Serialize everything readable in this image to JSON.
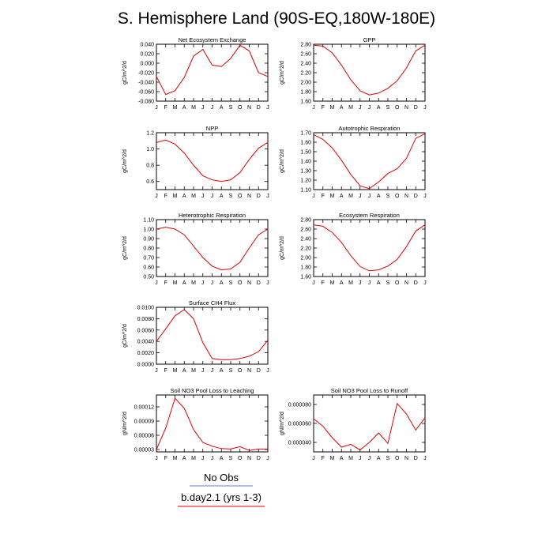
{
  "title": "S. Hemisphere Land (90S-EQ,180W-180E)",
  "colors": {
    "line": "#e00000",
    "axis": "#000000",
    "obs_line": "#5a7fd6",
    "model_line": "#e00000"
  },
  "months": [
    "J",
    "F",
    "M",
    "A",
    "M",
    "J",
    "J",
    "A",
    "S",
    "O",
    "N",
    "D",
    "J"
  ],
  "legend": {
    "obs_label": "No Obs",
    "model_label": "b.day2.1 (yrs 1-3)"
  },
  "chart_data": [
    {
      "type": "line",
      "title": "Net Ecosystem Exchange",
      "ylabel": "gC/m^2/d",
      "ylim": [
        -0.08,
        0.04
      ],
      "yticks": [
        -0.08,
        -0.06,
        -0.04,
        -0.02,
        0,
        0.02,
        0.04
      ],
      "yticklabels": [
        "-0.080",
        "-0.060",
        "-0.040",
        "-0.020",
        "0.000",
        "0.020",
        "0.040"
      ],
      "values": [
        -0.028,
        -0.066,
        -0.058,
        -0.03,
        0.015,
        0.029,
        -0.004,
        -0.007,
        0.01,
        0.038,
        0.026,
        -0.02,
        -0.028
      ]
    },
    {
      "type": "line",
      "title": "GPP",
      "ylabel": "gC/m^2/d",
      "ylim": [
        1.6,
        2.8
      ],
      "yticks": [
        1.6,
        1.8,
        2.0,
        2.2,
        2.4,
        2.6,
        2.8
      ],
      "yticklabels": [
        "1.60",
        "1.80",
        "2.00",
        "2.20",
        "2.40",
        "2.60",
        "2.80"
      ],
      "values": [
        2.78,
        2.76,
        2.62,
        2.36,
        2.05,
        1.82,
        1.73,
        1.77,
        1.87,
        2.03,
        2.3,
        2.66,
        2.78
      ]
    },
    {
      "type": "line",
      "title": "NPP",
      "ylabel": "gC/m^2/d",
      "ylim": [
        0.5,
        1.2
      ],
      "yticks": [
        0.6,
        0.8,
        1.0,
        1.2
      ],
      "yticklabels": [
        "0.6",
        "0.8",
        "1.0",
        "1.2"
      ],
      "values": [
        1.08,
        1.11,
        1.06,
        0.95,
        0.8,
        0.67,
        0.62,
        0.6,
        0.62,
        0.71,
        0.87,
        1.01,
        1.08
      ]
    },
    {
      "type": "line",
      "title": "Autotrophic Respiration",
      "ylabel": "gC/m^2/d",
      "ylim": [
        1.1,
        1.7
      ],
      "yticks": [
        1.1,
        1.2,
        1.3,
        1.4,
        1.5,
        1.6,
        1.7
      ],
      "yticklabels": [
        "1.10",
        "1.20",
        "1.30",
        "1.40",
        "1.50",
        "1.60",
        "1.70"
      ],
      "values": [
        1.68,
        1.63,
        1.54,
        1.41,
        1.26,
        1.14,
        1.11,
        1.18,
        1.27,
        1.32,
        1.43,
        1.64,
        1.69
      ]
    },
    {
      "type": "line",
      "title": "Heterotrophic Respiration",
      "ylabel": "gC/m^2/d",
      "ylim": [
        0.5,
        1.1
      ],
      "yticks": [
        0.5,
        0.6,
        0.7,
        0.8,
        0.9,
        1.0,
        1.1
      ],
      "yticklabels": [
        "0.50",
        "0.60",
        "0.70",
        "0.80",
        "0.90",
        "1.00",
        "1.10"
      ],
      "values": [
        1.0,
        1.02,
        1.0,
        0.94,
        0.82,
        0.7,
        0.61,
        0.57,
        0.58,
        0.65,
        0.8,
        0.94,
        1.0
      ]
    },
    {
      "type": "line",
      "title": "Ecosystem Respiration",
      "ylabel": "gC/m^2/d",
      "ylim": [
        1.6,
        2.8
      ],
      "yticks": [
        1.6,
        1.8,
        2.0,
        2.2,
        2.4,
        2.6,
        2.8
      ],
      "yticklabels": [
        "1.60",
        "1.80",
        "2.00",
        "2.20",
        "2.40",
        "2.60",
        "2.80"
      ],
      "values": [
        2.69,
        2.66,
        2.53,
        2.32,
        2.04,
        1.81,
        1.72,
        1.74,
        1.82,
        1.96,
        2.23,
        2.56,
        2.69
      ]
    },
    {
      "type": "line",
      "title": "Surface CH4 Flux",
      "ylabel": "gC/m^2/d",
      "ylim": [
        0,
        0.01
      ],
      "yticks": [
        0,
        0.002,
        0.004,
        0.006,
        0.008,
        0.01
      ],
      "yticklabels": [
        "0.0000",
        "0.0020",
        "0.0040",
        "0.0060",
        "0.0080",
        "0.0100"
      ],
      "values": [
        0.004,
        0.0062,
        0.0085,
        0.0096,
        0.008,
        0.0038,
        0.001,
        0.0008,
        0.0008,
        0.001,
        0.0014,
        0.0022,
        0.0042
      ]
    },
    {
      "type": "line",
      "title": "Soil NO3 Pool Loss to Leaching",
      "ylabel": "gN/m^2/d",
      "ylim": [
        2.5e-05,
        0.000145
      ],
      "yticks": [
        3e-05,
        6e-05,
        9e-05,
        0.00012
      ],
      "yticklabels": [
        "0.00003",
        "0.00006",
        "0.00009",
        "0.00012"
      ],
      "values": [
        3e-05,
        7.5e-05,
        0.000138,
        0.000117,
        7.2e-05,
        4.5e-05,
        3.7e-05,
        3.2e-05,
        3.1e-05,
        3.6e-05,
        2.8e-05,
        3.1e-05,
        3.1e-05
      ]
    },
    {
      "type": "line",
      "title": "Soil NO3 Pool Loss to Runoff",
      "ylabel": "gN/m^2/d",
      "ylim": [
        3e-05,
        9e-05
      ],
      "yticks": [
        4e-05,
        6e-05,
        8e-05
      ],
      "yticklabels": [
        "0.000040",
        "0.000060",
        "0.000080"
      ],
      "values": [
        6.5e-05,
        5.7e-05,
        4.5e-05,
        3.5e-05,
        3.8e-05,
        3.2e-05,
        4e-05,
        5e-05,
        3.9e-05,
        8.1e-05,
        7e-05,
        5.3e-05,
        6.6e-05
      ]
    }
  ]
}
